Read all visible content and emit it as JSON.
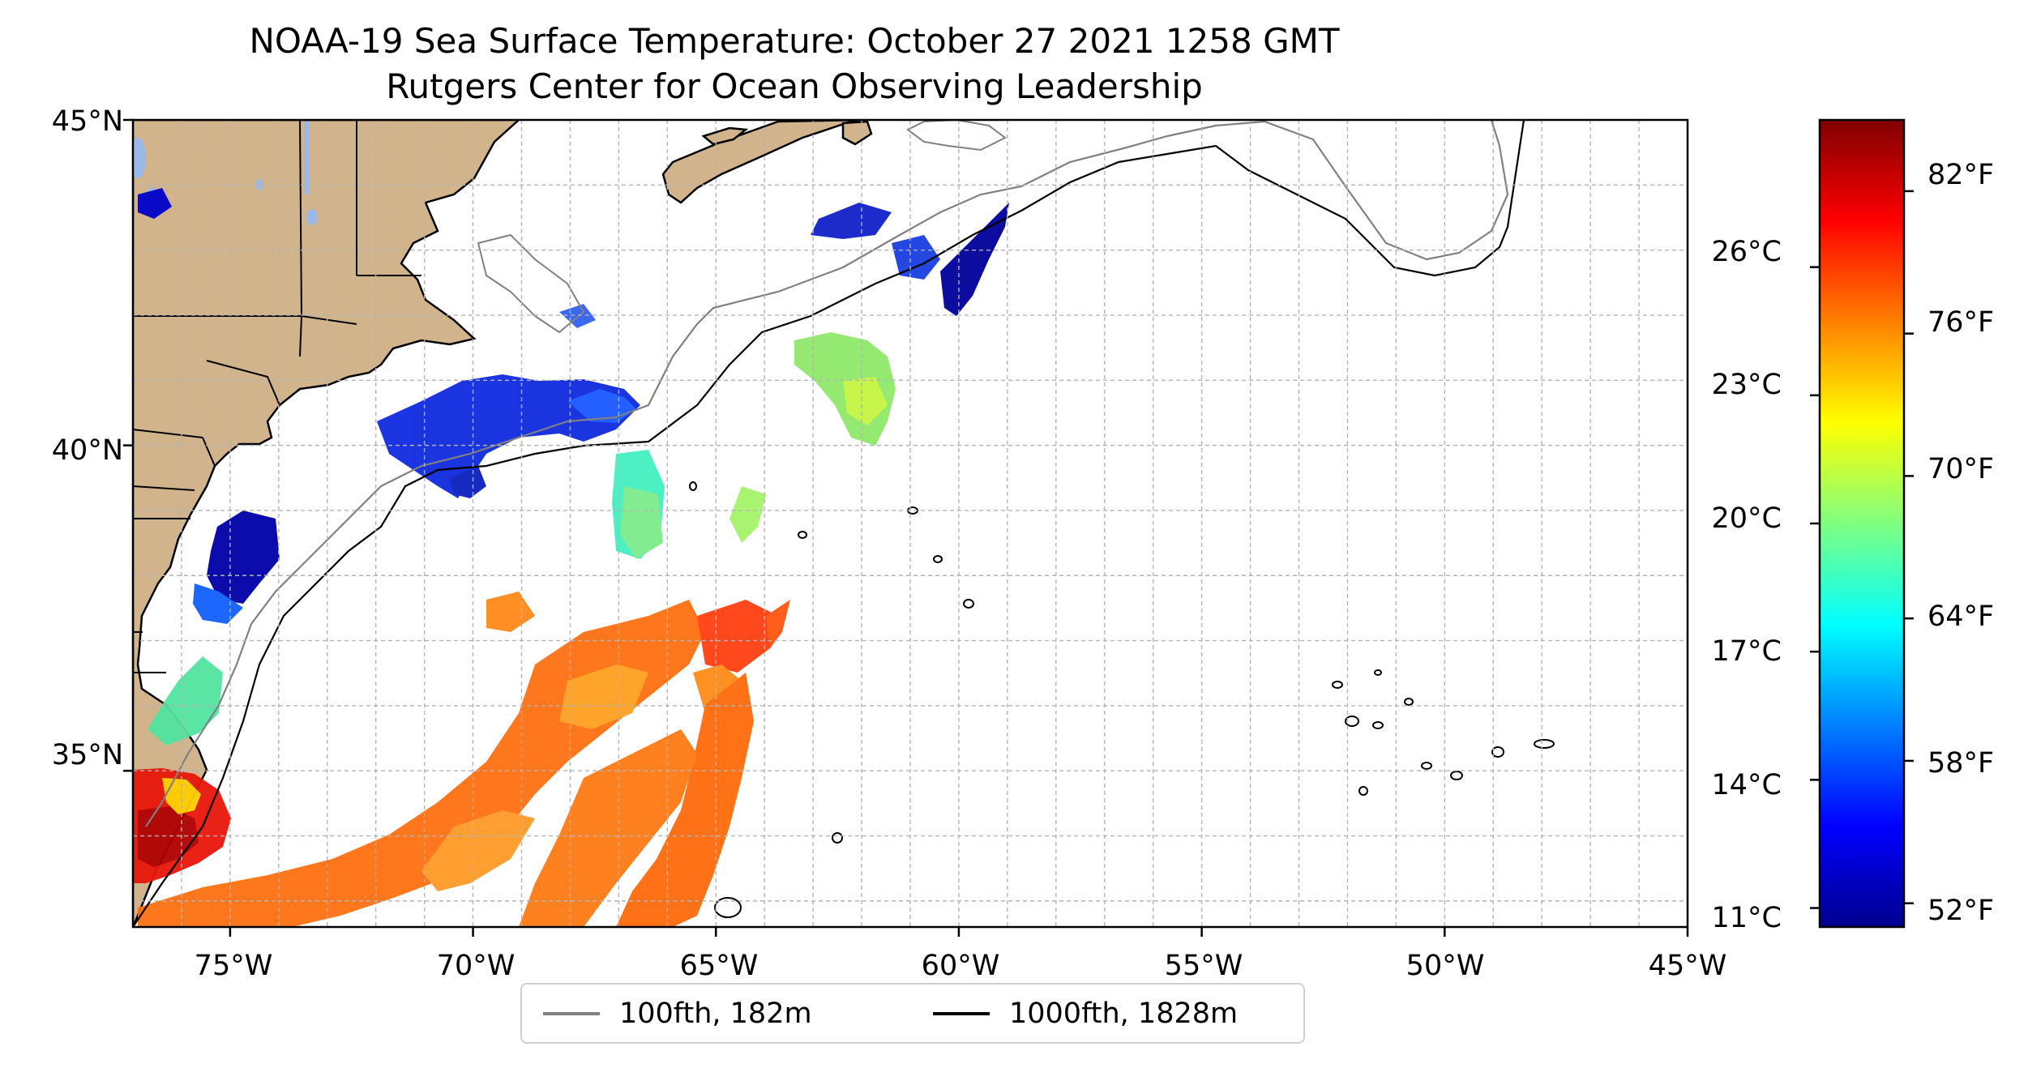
{
  "title": {
    "line1": "NOAA-19 Sea Surface Temperature: October 27 2021 1258 GMT",
    "line2": "Rutgers Center for Ocean Observing Leadership"
  },
  "map": {
    "projection": "plate carree",
    "lon_range": [
      -77,
      -45
    ],
    "lat_range": [
      32.6,
      45
    ],
    "lon_ticks": [
      {
        "value": -75,
        "label": "75°W"
      },
      {
        "value": -70,
        "label": "70°W"
      },
      {
        "value": -65,
        "label": "65°W"
      },
      {
        "value": -60,
        "label": "60°W"
      },
      {
        "value": -55,
        "label": "55°W"
      },
      {
        "value": -50,
        "label": "50°W"
      },
      {
        "value": -45,
        "label": "45°W"
      }
    ],
    "lat_ticks": [
      {
        "value": 45,
        "label": "45°N"
      },
      {
        "value": 40,
        "label": "40°N"
      },
      {
        "value": 35,
        "label": "35°N"
      }
    ],
    "minor_gridlines": "every 1° longitude and latitude, dashed",
    "land_color": "#d2b48c",
    "ocean_color": "#ffffff"
  },
  "colorbar": {
    "colormap": "jet",
    "range_f": [
      51,
      85
    ],
    "colors": [
      "#00008f",
      "#0000ff",
      "#0080ff",
      "#00ffff",
      "#80ff80",
      "#ffff00",
      "#ff8000",
      "#ff0000",
      "#800000"
    ],
    "fahrenheit_ticks": [
      {
        "value": 52,
        "label": "52°F"
      },
      {
        "value": 58,
        "label": "58°F"
      },
      {
        "value": 64,
        "label": "64°F"
      },
      {
        "value": 70,
        "label": "70°F"
      },
      {
        "value": 76,
        "label": "76°F"
      },
      {
        "value": 82,
        "label": "82°F"
      }
    ],
    "celsius_ticks": [
      {
        "value": 11,
        "label": "11°C"
      },
      {
        "value": 14,
        "label": "14°C"
      },
      {
        "value": 17,
        "label": "17°C"
      },
      {
        "value": 20,
        "label": "20°C"
      },
      {
        "value": 23,
        "label": "23°C"
      },
      {
        "value": 26,
        "label": "26°C"
      }
    ]
  },
  "legend": {
    "items": [
      {
        "label": "100fth, 182m",
        "color": "#808080"
      },
      {
        "label": "1000fth, 1828m",
        "color": "#000000"
      }
    ]
  }
}
